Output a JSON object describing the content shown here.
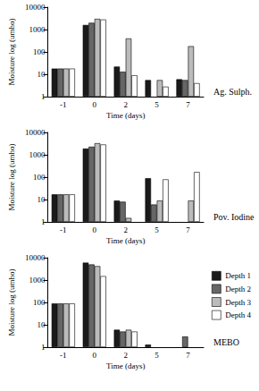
{
  "chart_data": [
    {
      "type": "bar",
      "title": "Ag. Sulph.",
      "x_label": "Time (days)",
      "y_label": "Moisture log (umho)",
      "categories": [
        "-1",
        "0",
        "2",
        "5",
        "7"
      ],
      "series": [
        {
          "name": "Depth 1",
          "color": "#1a1a1a",
          "values": [
            18,
            1600,
            22,
            5.5,
            6
          ]
        },
        {
          "name": "Depth 2",
          "color": "#666666",
          "values": [
            18,
            2000,
            13,
            null,
            5.5
          ]
        },
        {
          "name": "Depth 3",
          "color": "#bbbbbb",
          "values": [
            18,
            3000,
            400,
            5.5,
            180
          ]
        },
        {
          "name": "Depth 4",
          "color": "#ffffff",
          "values": [
            18,
            2800,
            9,
            2.8,
            4
          ]
        }
      ],
      "ylim": [
        1,
        10000
      ],
      "yticks": [
        1,
        10,
        100,
        1000,
        10000
      ],
      "log": "y",
      "grid": false
    },
    {
      "type": "bar",
      "title": "Pov. Iodine",
      "x_label": "Time (days)",
      "y_label": "Moisture log (umho)",
      "categories": [
        "-1",
        "0",
        "2",
        "5",
        "7"
      ],
      "series": [
        {
          "name": "Depth 1",
          "color": "#1a1a1a",
          "values": [
            17,
            1900,
            9,
            90,
            null
          ]
        },
        {
          "name": "Depth 2",
          "color": "#666666",
          "values": [
            17,
            2300,
            8,
            6,
            null
          ]
        },
        {
          "name": "Depth 3",
          "color": "#bbbbbb",
          "values": [
            17,
            3300,
            1.5,
            9,
            9
          ]
        },
        {
          "name": "Depth 4",
          "color": "#ffffff",
          "values": [
            17,
            2900,
            null,
            80,
            170
          ]
        }
      ],
      "ylim": [
        1,
        10000
      ],
      "yticks": [
        1,
        10,
        100,
        1000,
        10000
      ],
      "log": "y",
      "grid": false
    },
    {
      "type": "bar",
      "title": "MEBO",
      "x_label": "Time (days)",
      "y_label": "Moisture log (umho)",
      "categories": [
        "-1",
        "0",
        "2",
        "5",
        "7"
      ],
      "series": [
        {
          "name": "Depth 1",
          "color": "#1a1a1a",
          "values": [
            90,
            6000,
            6,
            1.3,
            null
          ]
        },
        {
          "name": "Depth 2",
          "color": "#666666",
          "values": [
            90,
            5000,
            5,
            null,
            3
          ]
        },
        {
          "name": "Depth 3",
          "color": "#bbbbbb",
          "values": [
            90,
            4200,
            6,
            null,
            null
          ]
        },
        {
          "name": "Depth 4",
          "color": "#ffffff",
          "values": [
            90,
            1500,
            5,
            null,
            null
          ]
        }
      ],
      "ylim": [
        1,
        10000
      ],
      "yticks": [
        1,
        10,
        100,
        1000,
        10000
      ],
      "log": "y",
      "grid": false,
      "legend": "bottom right"
    }
  ]
}
